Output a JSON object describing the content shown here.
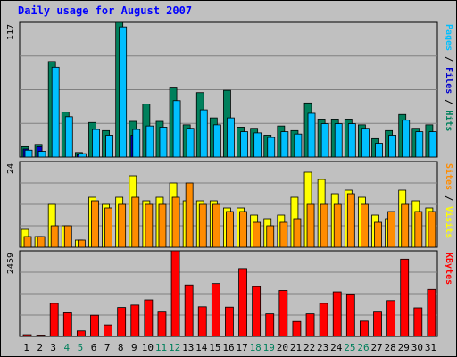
{
  "chart_data": {
    "type": "bar",
    "title": "Daily usage for August 2007",
    "x": [
      "1",
      "2",
      "3",
      "4",
      "5",
      "6",
      "7",
      "8",
      "9",
      "10",
      "11",
      "12",
      "13",
      "14",
      "15",
      "16",
      "17",
      "18",
      "19",
      "20",
      "21",
      "22",
      "23",
      "24",
      "25",
      "26",
      "27",
      "28",
      "29",
      "30",
      "31"
    ],
    "weekend_days": [
      "4",
      "5",
      "11",
      "12",
      "18",
      "19",
      "25",
      "26"
    ],
    "panels": [
      {
        "id": "top",
        "ymax_label": "117",
        "ylim": [
          0,
          117
        ],
        "right_label": [
          "Pages",
          "Files",
          "Hits"
        ],
        "series": [
          {
            "name": "Hits",
            "color": "#00805c",
            "values": [
              9,
              11,
              83,
              39,
              4,
              30,
              23,
              117,
              31,
              46,
              31,
              60,
              28,
              56,
              34,
              58,
              26,
              25,
              19,
              27,
              23,
              47,
              33,
              33,
              33,
              28,
              16,
              23,
              37,
              25,
              28
            ]
          },
          {
            "name": "Files",
            "color": "#0000cc",
            "values": [
              7,
              9,
              0,
              0,
              2,
              0,
              0,
              0,
              19,
              0,
              0,
              0,
              0,
              0,
              0,
              0,
              0,
              0,
              0,
              0,
              0,
              0,
              0,
              0,
              0,
              0,
              0,
              0,
              0,
              0,
              0
            ]
          },
          {
            "name": "Pages",
            "color": "#00bfff",
            "values": [
              6,
              5,
              78,
              35,
              3,
              24,
              19,
              113,
              24,
              27,
              26,
              49,
              25,
              41,
              28,
              34,
              22,
              21,
              17,
              22,
              20,
              38,
              29,
              29,
              29,
              25,
              12,
              19,
              32,
              22,
              22
            ]
          }
        ]
      },
      {
        "id": "middle",
        "ymax_label": "24",
        "ylim": [
          0,
          24
        ],
        "right_label": [
          "Sites",
          "Visits"
        ],
        "series": [
          {
            "name": "Visits",
            "color": "#ffff00",
            "values": [
              5,
              3,
              12,
              6,
              2,
              14,
              12,
              14,
              20,
              13,
              14,
              18,
              13,
              13,
              13,
              11,
              11,
              9,
              8,
              9,
              14,
              21,
              19,
              15,
              16,
              14,
              9,
              8,
              16,
              13,
              11
            ]
          },
          {
            "name": "Sites",
            "color": "#ff8c00",
            "values": [
              3,
              3,
              6,
              6,
              2,
              13,
              11,
              12,
              14,
              12,
              12,
              14,
              18,
              12,
              12,
              10,
              10,
              7,
              6,
              7,
              8,
              12,
              12,
              12,
              15,
              12,
              7,
              10,
              12,
              10,
              10
            ]
          }
        ]
      },
      {
        "id": "bottom",
        "ymax_label": "2459",
        "ylim": [
          0,
          2459
        ],
        "right_label": [
          "KBytes"
        ],
        "series": [
          {
            "name": "KBytes",
            "color": "#ff0000",
            "values": [
              50,
              40,
              950,
              680,
              160,
              610,
              330,
              830,
              900,
              1050,
              700,
              2459,
              1480,
              850,
              1520,
              840,
              1950,
              1430,
              650,
              1320,
              430,
              650,
              950,
              1280,
              1220,
              440,
              700,
              1030,
              2220,
              820,
              1350
            ]
          }
        ]
      }
    ]
  },
  "colors": {
    "page_background": "#c0c0c0",
    "plot_background": "#c0c0c0",
    "title_color": "#0000ff",
    "bar_outline": "#000000",
    "weekday_label": "#000000",
    "weekend_label": "#00805c",
    "gridline": "#808080"
  }
}
